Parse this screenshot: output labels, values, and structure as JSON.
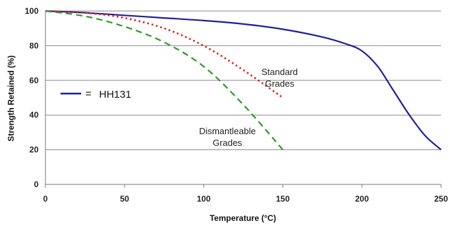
{
  "chart_data": {
    "type": "line",
    "title": "",
    "xlabel": "Temperature (°C)",
    "ylabel": "Strength Retained (%)",
    "xlim": [
      0,
      250
    ],
    "ylim": [
      0,
      100
    ],
    "x_ticks": [
      "0",
      "50",
      "100",
      "150",
      "200",
      "250"
    ],
    "y_ticks": [
      "0",
      "20",
      "40",
      "60",
      "80",
      "100"
    ],
    "grid": "horizontal",
    "legend": {
      "position": "left",
      "marker": "—",
      "equals": "=",
      "entries": [
        "HH131"
      ]
    },
    "series": [
      {
        "name": "HH131",
        "color": "#1f1f9a",
        "style": "solid",
        "x": [
          0,
          25,
          50,
          75,
          100,
          125,
          150,
          175,
          190,
          200,
          210,
          220,
          230,
          240,
          250
        ],
        "y": [
          100,
          99,
          97.5,
          96,
          94.5,
          92.5,
          89.5,
          85,
          81,
          77,
          68,
          54,
          40,
          28,
          20
        ]
      },
      {
        "name": "Standard Grades",
        "color": "#e02020",
        "style": "dotted",
        "x": [
          0,
          25,
          50,
          75,
          100,
          125,
          150
        ],
        "y": [
          100,
          99,
          96,
          90,
          80,
          66,
          50
        ]
      },
      {
        "name": "Dismantleable Grades",
        "color": "#2a9a2a",
        "style": "dashed",
        "x": [
          0,
          25,
          50,
          75,
          100,
          125,
          150
        ],
        "y": [
          100,
          97,
          91,
          82,
          68,
          46,
          20
        ]
      }
    ],
    "annotations": [
      {
        "lines": [
          "Standard",
          "Grades"
        ],
        "x": 148,
        "y": 63
      },
      {
        "lines": [
          "Dismantleable",
          "Grades"
        ],
        "x": 115,
        "y": 29
      }
    ]
  }
}
